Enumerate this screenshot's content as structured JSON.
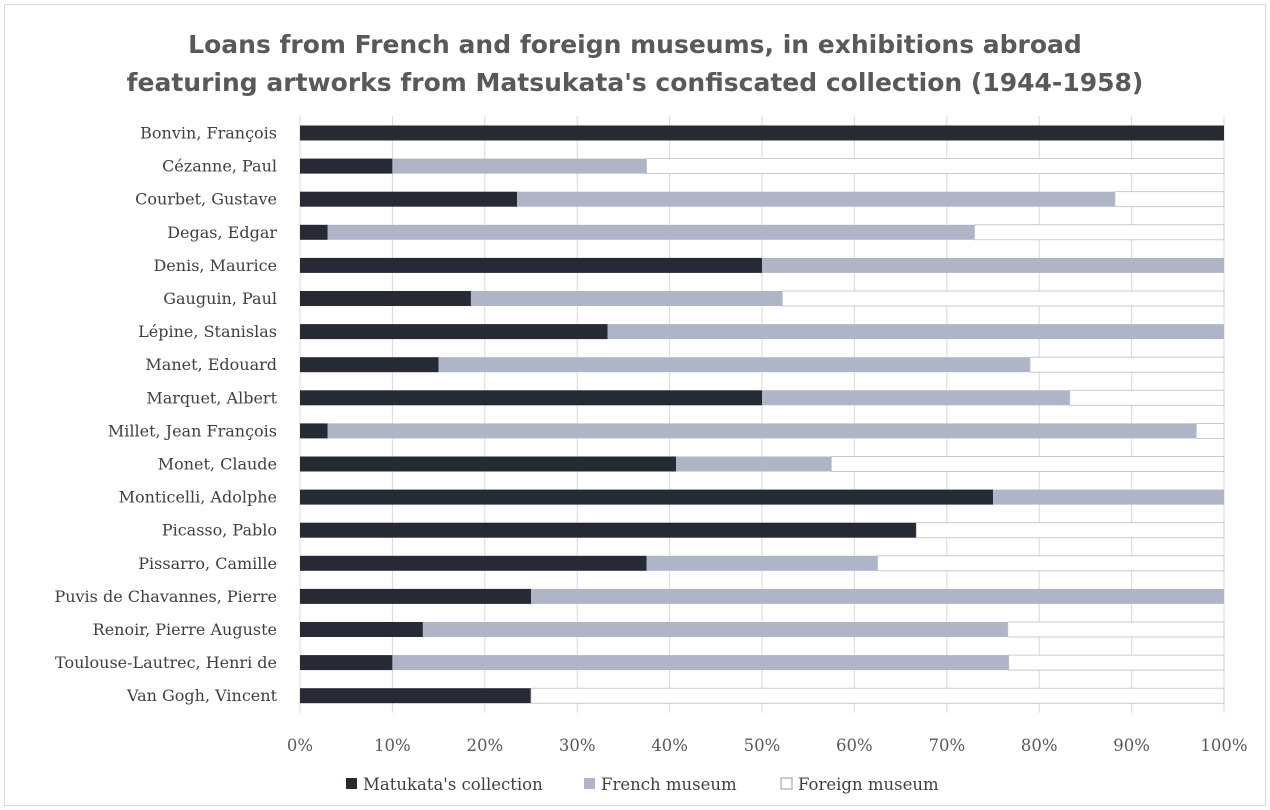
{
  "chart_data": {
    "type": "bar",
    "orientation": "horizontal",
    "stacked": "percent",
    "title": "Loans from French and foreign museums, in exhibitions abroad",
    "subtitle": "featuring artworks from Matsukata's confiscated collection (1944-1958)",
    "categories": [
      "Bonvin, François",
      "Cézanne, Paul",
      "Courbet, Gustave",
      "Degas, Edgar",
      "Denis, Maurice",
      "Gauguin, Paul",
      "Lépine, Stanislas",
      "Manet, Edouard",
      "Marquet, Albert",
      "Millet, Jean François",
      "Monet, Claude",
      "Monticelli, Adolphe",
      "Picasso, Pablo",
      "Pissarro, Camille",
      "Puvis de Chavannes, Pierre",
      "Renoir, Pierre Auguste",
      "Toulouse-Lautrec, Henri de",
      "Van Gogh, Vincent"
    ],
    "series": [
      {
        "name": "Matukata's collection",
        "color": "#262a35",
        "values": [
          100,
          10,
          23.5,
          3,
          50,
          18.5,
          33.3,
          15,
          50,
          3,
          40.7,
          75,
          66.7,
          37.5,
          25,
          13.3,
          10,
          25
        ]
      },
      {
        "name": "French museum",
        "color": "#adb5c7",
        "values": [
          0,
          27.5,
          64.7,
          70,
          50,
          33.7,
          66.7,
          64,
          33.3,
          94,
          16.8,
          25,
          0,
          25,
          75,
          63.3,
          66.7,
          0
        ]
      },
      {
        "name": "Foreign museum",
        "color": "#ffffff",
        "values": [
          0,
          62.5,
          11.8,
          27,
          0,
          47.8,
          0,
          21,
          16.7,
          3,
          42.5,
          0,
          33.3,
          37.5,
          0,
          23.4,
          23.3,
          75
        ]
      }
    ],
    "xlim": [
      0,
      100
    ],
    "x_ticks": [
      "0%",
      "10%",
      "20%",
      "30%",
      "40%",
      "50%",
      "60%",
      "70%",
      "80%",
      "90%",
      "100%"
    ],
    "grid": "vertical",
    "legend": "bottom"
  }
}
